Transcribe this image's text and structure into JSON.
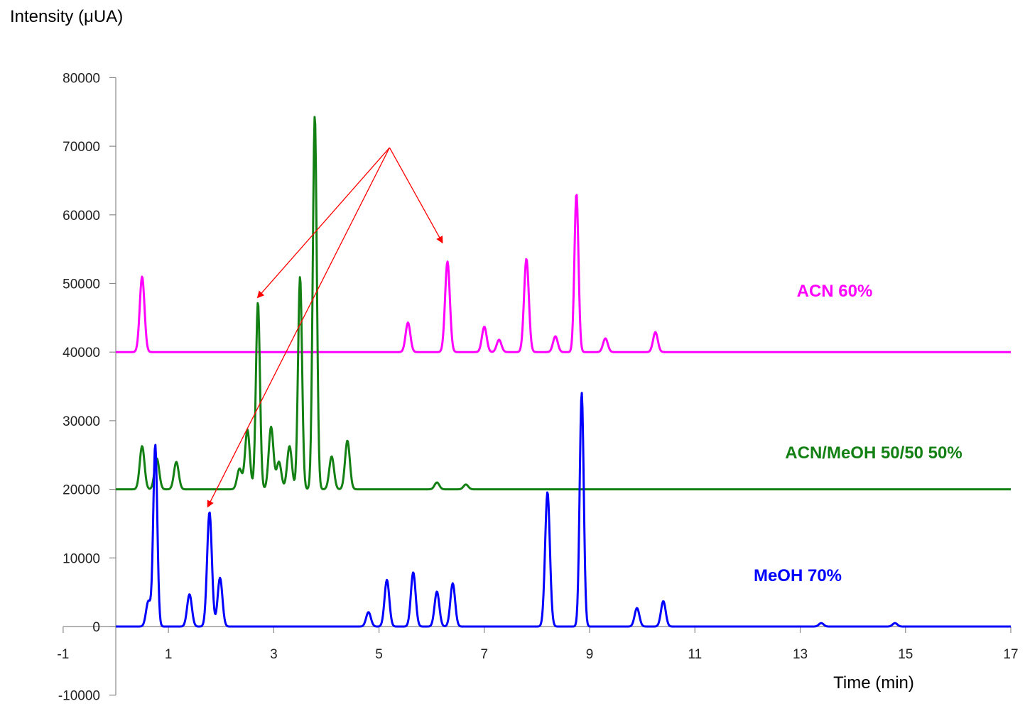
{
  "chart_data": {
    "type": "line",
    "ylabel": "Intensity (μUA)",
    "xlabel": "Time (min)",
    "xlim": [
      -1,
      17
    ],
    "ylim": [
      -10000,
      80000
    ],
    "x_ticks": [
      -1,
      1,
      3,
      5,
      7,
      9,
      11,
      13,
      15,
      17
    ],
    "y_ticks": [
      -10000,
      0,
      10000,
      20000,
      30000,
      40000,
      50000,
      60000,
      70000,
      80000
    ],
    "grid": false,
    "series": [
      {
        "name": "ACN 60%",
        "color": "#ff00ff",
        "baseline": 40000,
        "start": 0,
        "end": 17,
        "peaks": [
          [
            0.5,
            51000
          ],
          [
            5.55,
            44300
          ],
          [
            6.3,
            53200
          ],
          [
            7.0,
            43700
          ],
          [
            7.28,
            41800
          ],
          [
            7.8,
            53600
          ],
          [
            8.35,
            42300
          ],
          [
            8.75,
            63100
          ],
          [
            9.3,
            42000
          ],
          [
            10.25,
            42900
          ]
        ]
      },
      {
        "name": "ACN/MeOH 50/50 50%",
        "color": "#138013",
        "baseline": 20000,
        "start": 0,
        "end": 17,
        "peaks": [
          [
            0.5,
            26300
          ],
          [
            0.78,
            24500
          ],
          [
            1.15,
            24000
          ],
          [
            2.35,
            23000
          ],
          [
            2.5,
            28700
          ],
          [
            2.7,
            47300
          ],
          [
            2.95,
            29100
          ],
          [
            3.1,
            24000
          ],
          [
            3.3,
            26300
          ],
          [
            3.5,
            51000
          ],
          [
            3.78,
            74500
          ],
          [
            4.1,
            24800
          ],
          [
            4.4,
            27100
          ],
          [
            6.1,
            21000
          ],
          [
            6.65,
            20700
          ]
        ]
      },
      {
        "name": "MeOH 70%",
        "color": "#0000ff",
        "baseline": 0,
        "start": 0,
        "end": 17,
        "peaks": [
          [
            0.62,
            3700
          ],
          [
            0.75,
            26500
          ],
          [
            1.4,
            4700
          ],
          [
            1.78,
            16700
          ],
          [
            1.98,
            7100
          ],
          [
            4.8,
            2100
          ],
          [
            5.15,
            6800
          ],
          [
            5.65,
            7900
          ],
          [
            6.1,
            5100
          ],
          [
            6.4,
            6300
          ],
          [
            8.2,
            19600
          ],
          [
            8.85,
            34100
          ],
          [
            9.9,
            2700
          ],
          [
            10.4,
            3700
          ],
          [
            13.4,
            500
          ],
          [
            14.8,
            500
          ]
        ]
      }
    ],
    "annotation": {
      "type": "arrows",
      "color": "#ff0000",
      "origin": [
        5.2,
        69800
      ],
      "targets": [
        [
          2.7,
          48000
        ],
        [
          6.2,
          56000
        ],
        [
          1.75,
          17500
        ]
      ]
    }
  }
}
